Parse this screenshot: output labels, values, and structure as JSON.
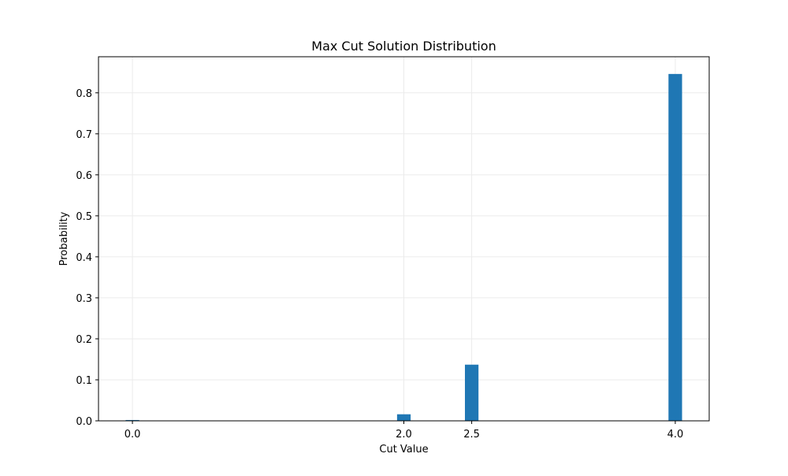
{
  "chart_data": {
    "type": "bar",
    "title": "Max Cut Solution Distribution",
    "xlabel": "Cut Value",
    "ylabel": "Probability",
    "x": [
      0.0,
      2.0,
      2.5,
      4.0
    ],
    "values": [
      0.002,
      0.016,
      0.137,
      0.846
    ],
    "bar_width": 0.1,
    "xlim": [
      -0.25,
      4.25
    ],
    "ylim": [
      0,
      0.888
    ],
    "xticks": [
      0.0,
      2.0,
      2.5,
      4.0
    ],
    "xtick_labels": [
      "0.0",
      "2.0",
      "2.5",
      "4.0"
    ],
    "yticks": [
      0.0,
      0.1,
      0.2,
      0.3,
      0.4,
      0.5,
      0.6,
      0.7,
      0.8
    ],
    "ytick_labels": [
      "0.0",
      "0.1",
      "0.2",
      "0.3",
      "0.4",
      "0.5",
      "0.6",
      "0.7",
      "0.8"
    ],
    "grid": true,
    "bar_color": "#1f77b4",
    "grid_color": "#ebebeb"
  }
}
